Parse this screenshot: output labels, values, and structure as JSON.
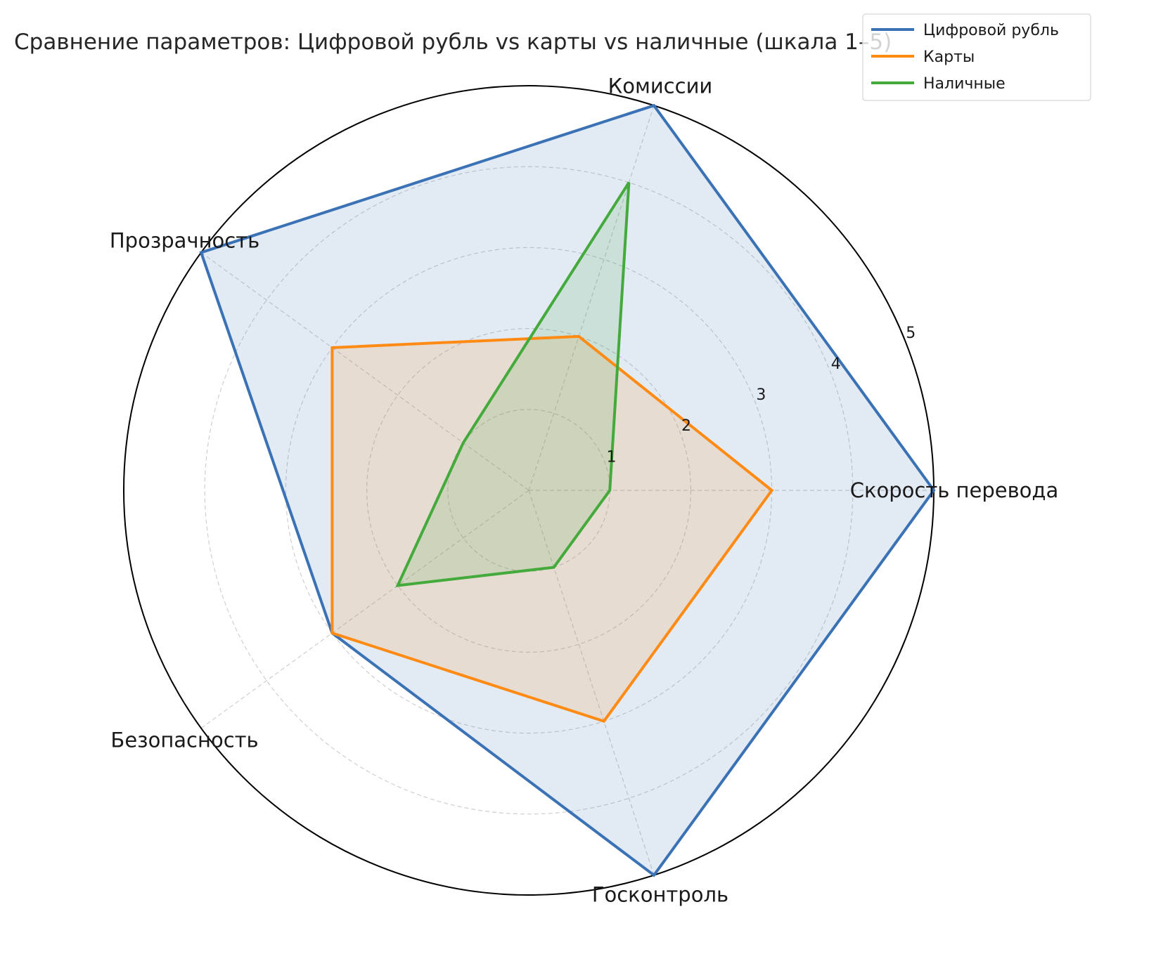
{
  "chart_data": {
    "type": "radar",
    "title": "Сравнение параметров: Цифровой рубль vs карты vs наличные (шкала 1–5)",
    "categories": [
      "Скорость перевода",
      "Комиссии",
      "Прозрачность",
      "Безопасность",
      "Госконтроль"
    ],
    "radial_ticks": [
      "1",
      "2",
      "3",
      "4",
      "5"
    ],
    "rlim": [
      0,
      5
    ],
    "grid": true,
    "legend_position": "top-right",
    "series": [
      {
        "name": "Цифровой рубль",
        "color": "#3a72b5",
        "values": [
          5,
          5,
          5,
          3,
          5
        ]
      },
      {
        "name": "Карты",
        "color": "#ff8a14",
        "values": [
          3,
          2,
          3,
          3,
          3
        ]
      },
      {
        "name": "Наличные",
        "color": "#44aa3c",
        "values": [
          1,
          4,
          1,
          2,
          1
        ]
      }
    ]
  }
}
